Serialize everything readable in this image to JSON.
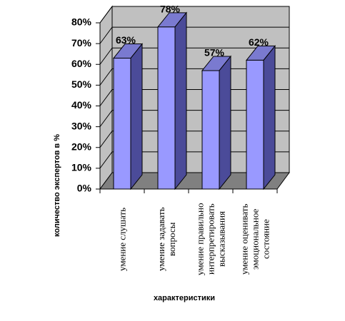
{
  "chart_data": {
    "type": "bar3d",
    "y_label": "количество экспертов в %",
    "x_label": "характеристики",
    "categories": [
      "умение слушать",
      "умение задавать вопросы",
      "умение правильно интерпретировать высказывания",
      "умение оценивать эмоциональное состояние"
    ],
    "values": [
      63,
      78,
      57,
      62
    ],
    "value_labels": [
      "63%",
      "78%",
      "57%",
      "62%"
    ],
    "color": "#9999ff",
    "ylim": [
      0,
      80
    ],
    "yticks": [
      {
        "value": 0,
        "label": "0%"
      },
      {
        "value": 10,
        "label": "10%"
      },
      {
        "value": 20,
        "label": "20%"
      },
      {
        "value": 30,
        "label": "30%"
      },
      {
        "value": 40,
        "label": "40%"
      },
      {
        "value": 50,
        "label": "50%"
      },
      {
        "value": 60,
        "label": "60%"
      },
      {
        "value": 70,
        "label": "70%"
      },
      {
        "value": 80,
        "label": "80%"
      }
    ],
    "grid": true
  }
}
